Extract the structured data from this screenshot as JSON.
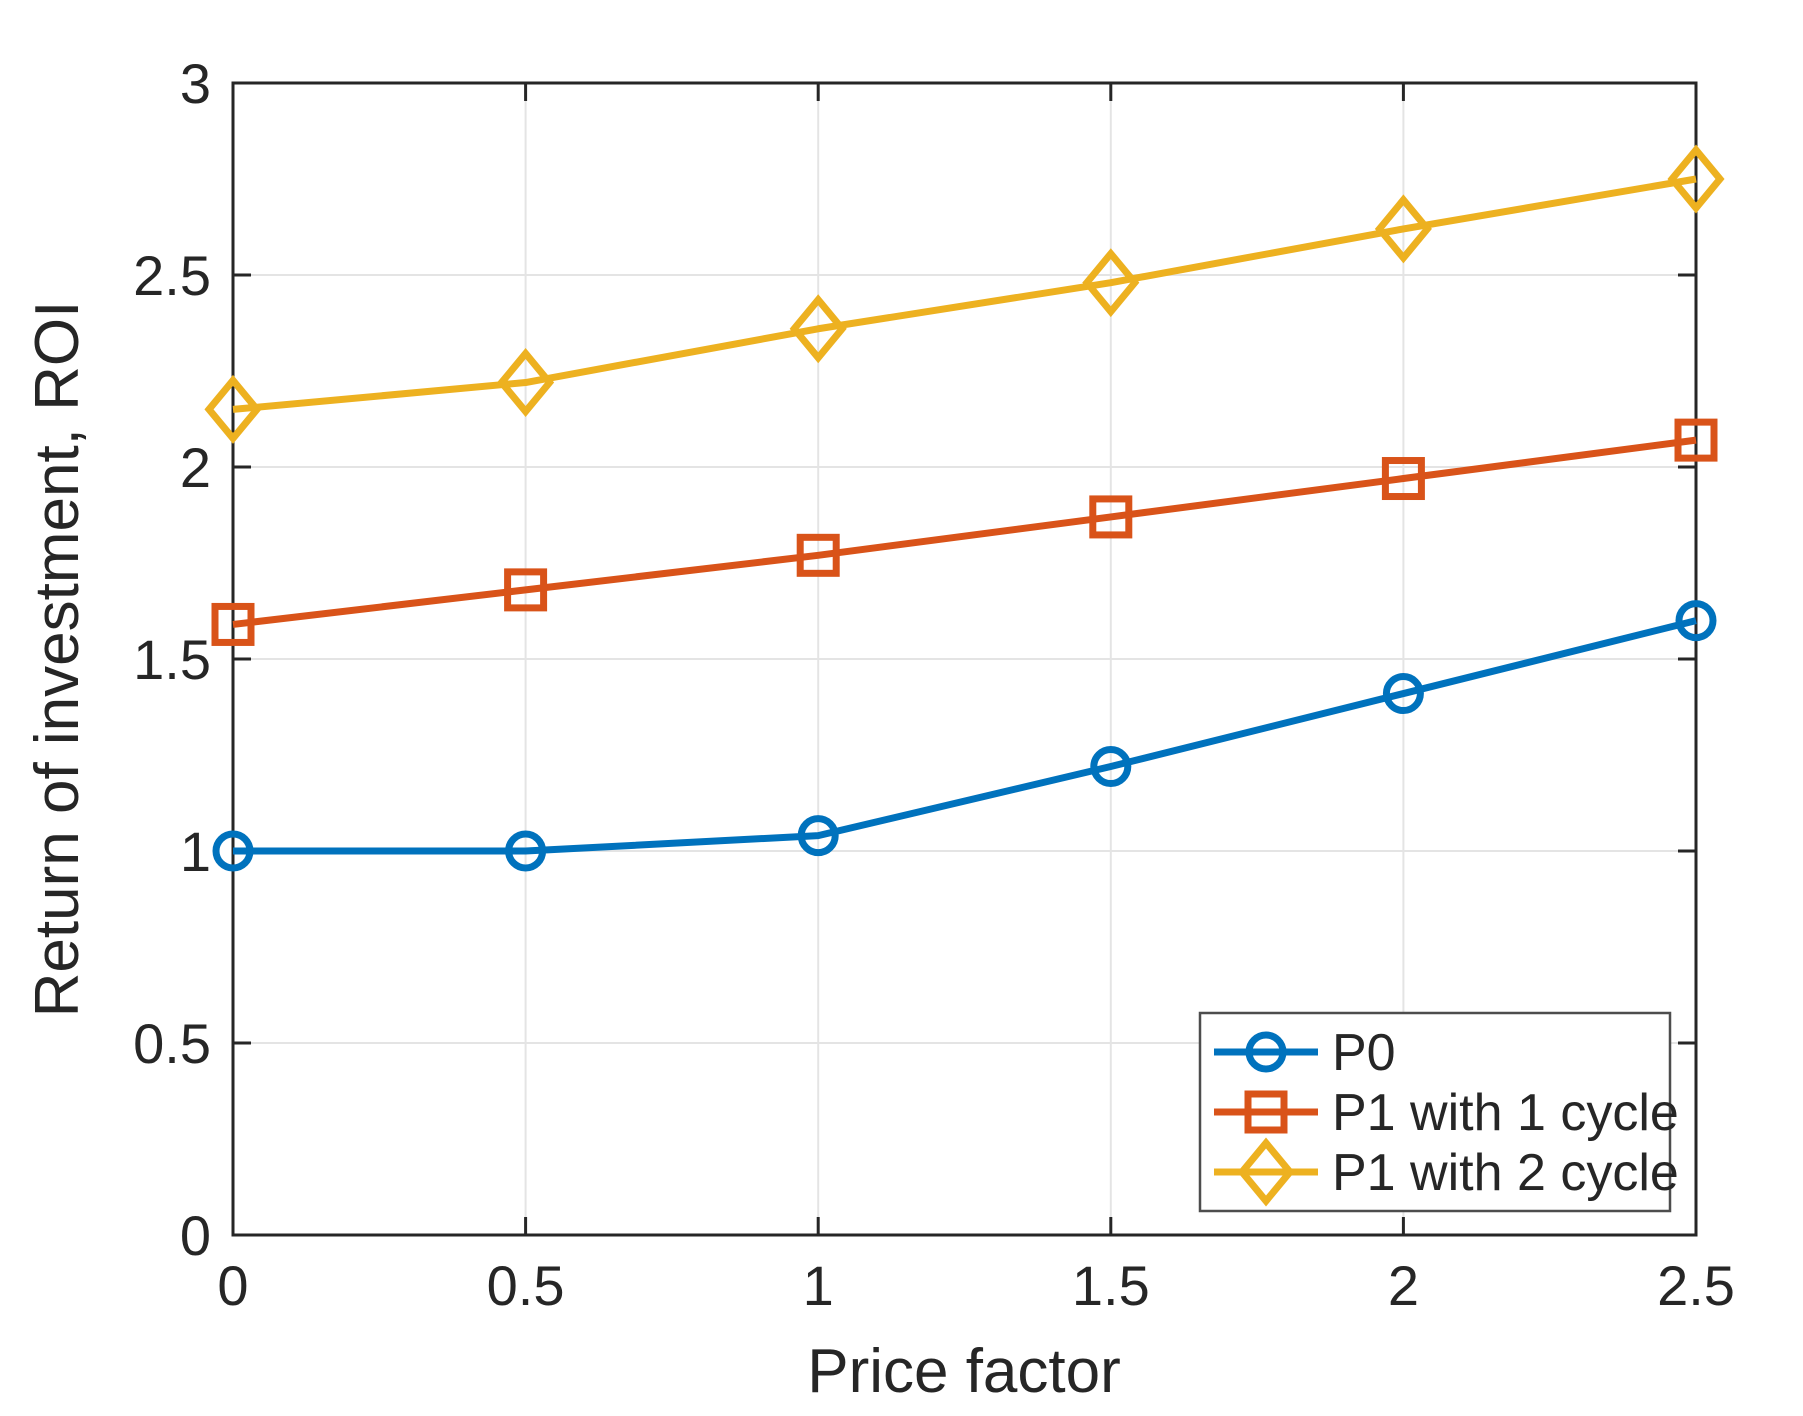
{
  "figure": {
    "background": "#ffffff"
  },
  "chart_data": {
    "type": "line",
    "title": "",
    "xlabel": "Price factor",
    "ylabel": "Return of investment, ROI",
    "xlim": [
      0,
      2.5
    ],
    "ylim": [
      0,
      3
    ],
    "xticks": [
      0,
      0.5,
      1,
      1.5,
      2,
      2.5
    ],
    "xtick_labels": [
      "0",
      "0.5",
      "1",
      "1.5",
      "2",
      "2.5"
    ],
    "yticks": [
      0,
      0.5,
      1,
      1.5,
      2,
      2.5,
      3
    ],
    "ytick_labels": [
      "0",
      "0.5",
      "1",
      "1.5",
      "2",
      "2.5",
      "3"
    ],
    "grid": true,
    "x": [
      0,
      0.5,
      1,
      1.5,
      2,
      2.5
    ],
    "series": [
      {
        "name": "P0",
        "color": "#0072BD",
        "marker": "circle",
        "values": [
          1.0,
          1.0,
          1.04,
          1.22,
          1.41,
          1.6
        ]
      },
      {
        "name": "P1 with 1 cycle",
        "color": "#D95319",
        "marker": "square",
        "values": [
          1.59,
          1.68,
          1.77,
          1.87,
          1.97,
          2.07
        ]
      },
      {
        "name": "P1 with 2 cycle",
        "color": "#EDB120",
        "marker": "diamond",
        "values": [
          2.15,
          2.22,
          2.36,
          2.48,
          2.62,
          2.75
        ]
      }
    ],
    "legend": {
      "position": "lower right",
      "entries": [
        "P0",
        "P1 with 1 cycle",
        "P1 with 2 cycle"
      ]
    },
    "axis_color": "#262626",
    "grid_color": "#e4e4e4",
    "legend_border_color": "#4d4d4d",
    "legend_background": "#ffffff"
  }
}
